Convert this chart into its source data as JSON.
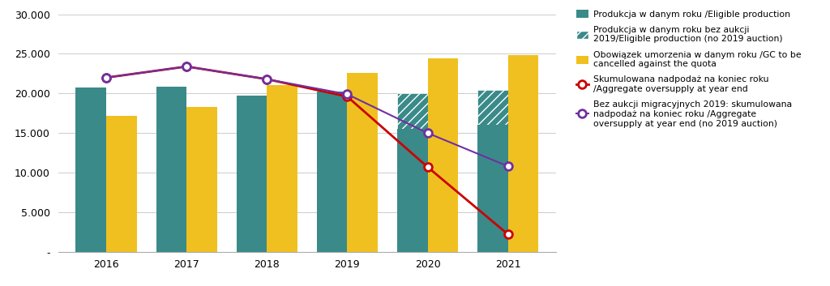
{
  "years": [
    2016,
    2017,
    2018,
    2019,
    2020,
    2021
  ],
  "produkcja_solid": [
    20800,
    20900,
    19700,
    20200,
    15500,
    16000
  ],
  "produkcja_hatched": [
    0,
    0,
    0,
    0,
    20000,
    20400
  ],
  "obowiazek": [
    17200,
    18300,
    21100,
    22600,
    24400,
    24800
  ],
  "agg_oversupply_red": [
    22000,
    23400,
    21800,
    19600,
    10700,
    2200
  ],
  "agg_oversupply_purple": [
    22000,
    23400,
    21800,
    19900,
    15000,
    10800
  ],
  "solid_color": "#3a8a8a",
  "hatched_color": "#3a8a8a",
  "obowiazek_color": "#f0c020",
  "red_line_color": "#cc0000",
  "purple_line_color": "#7030a0",
  "background_color": "#ffffff",
  "grid_color": "#cccccc",
  "ylim": [
    0,
    30000
  ],
  "yticks": [
    0,
    5000,
    10000,
    15000,
    20000,
    25000,
    30000
  ],
  "ytick_labels": [
    "-",
    "5.000",
    "10.000",
    "15.000",
    "20.000",
    "25.000",
    "30.000"
  ],
  "legend_label1": "Produkcja w danym roku /Eligible production",
  "legend_label2": "Produkcja w danym roku bez aukcji\n2019/Eligible production (no 2019 auction)",
  "legend_label3": "Obowiązek umorzenia w danym roku /GC to be\ncancelled against the quota",
  "legend_label4": "Skumulowana nadpodaż na koniec roku\n/Aggregate oversupply at year end",
  "legend_label5": "Bez aukcji migracyjnych 2019: skumulowana\nnadpodaż na koniec roku /Aggregate\noversupply at year end (no 2019 auction)"
}
